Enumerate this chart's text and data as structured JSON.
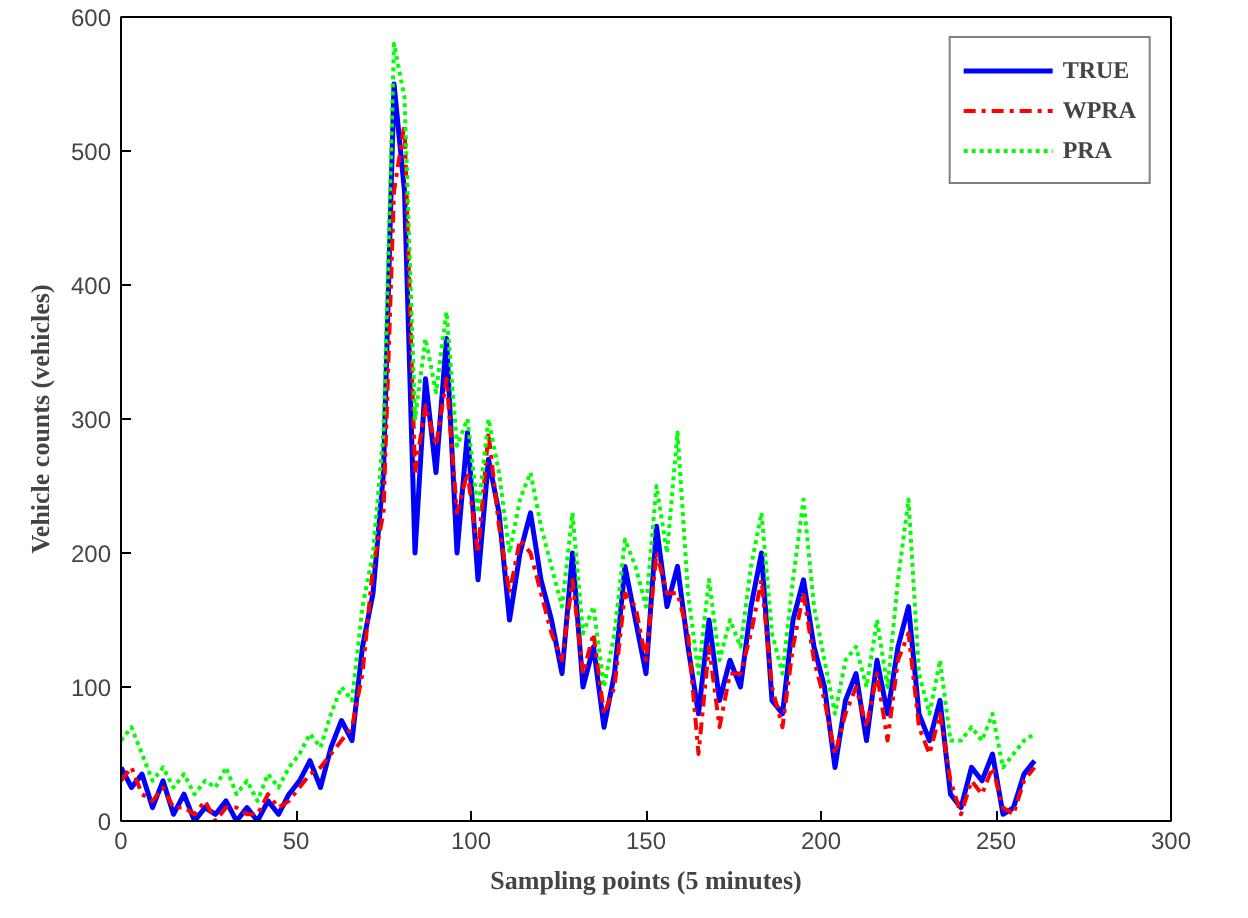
{
  "chart_data": {
    "type": "line",
    "xlabel": "Sampling points (5 minutes)",
    "ylabel": "Vehicle counts (vehicles)",
    "x": [
      0,
      3,
      6,
      9,
      12,
      15,
      18,
      21,
      24,
      27,
      30,
      33,
      36,
      39,
      42,
      45,
      48,
      51,
      54,
      57,
      60,
      63,
      66,
      69,
      72,
      75,
      78,
      81,
      84,
      87,
      90,
      93,
      96,
      99,
      102,
      105,
      108,
      111,
      114,
      117,
      120,
      123,
      126,
      129,
      132,
      135,
      138,
      141,
      144,
      147,
      150,
      153,
      156,
      159,
      162,
      165,
      168,
      171,
      174,
      177,
      180,
      183,
      186,
      189,
      192,
      195,
      198,
      201,
      204,
      207,
      210,
      213,
      216,
      219,
      222,
      225,
      228,
      231,
      234,
      237,
      240,
      243,
      246,
      249,
      252,
      255,
      258,
      261
    ],
    "series": [
      {
        "name": "TRUE",
        "color": "#0000ff",
        "line_style": "solid",
        "values": [
          40,
          25,
          35,
          10,
          30,
          5,
          20,
          0,
          10,
          5,
          15,
          0,
          10,
          0,
          15,
          5,
          20,
          30,
          45,
          25,
          55,
          75,
          60,
          130,
          170,
          260,
          550,
          470,
          200,
          330,
          260,
          360,
          200,
          290,
          180,
          270,
          230,
          150,
          200,
          230,
          180,
          150,
          110,
          200,
          100,
          130,
          70,
          110,
          190,
          150,
          110,
          220,
          160,
          190,
          130,
          80,
          150,
          90,
          120,
          100,
          160,
          200,
          90,
          80,
          150,
          180,
          130,
          100,
          40,
          90,
          110,
          60,
          120,
          80,
          130,
          160,
          80,
          60,
          90,
          20,
          10,
          40,
          30,
          50,
          5,
          10,
          35,
          45
        ]
      },
      {
        "name": "WPRA",
        "color": "#ff0000",
        "line_style": "dashed",
        "values": [
          30,
          40,
          20,
          15,
          25,
          10,
          10,
          5,
          15,
          0,
          10,
          10,
          5,
          5,
          20,
          10,
          15,
          25,
          35,
          40,
          50,
          60,
          70,
          110,
          190,
          230,
          470,
          520,
          260,
          310,
          280,
          330,
          230,
          260,
          200,
          290,
          220,
          170,
          210,
          200,
          170,
          140,
          120,
          180,
          110,
          140,
          80,
          100,
          170,
          160,
          120,
          200,
          170,
          170,
          140,
          50,
          130,
          70,
          110,
          110,
          140,
          180,
          100,
          70,
          130,
          170,
          120,
          90,
          50,
          80,
          100,
          70,
          110,
          60,
          120,
          140,
          70,
          50,
          80,
          30,
          5,
          30,
          20,
          40,
          10,
          5,
          30,
          40
        ]
      },
      {
        "name": "PRA",
        "color": "#00ff00",
        "line_style": "dotted",
        "values": [
          60,
          70,
          50,
          30,
          40,
          25,
          35,
          20,
          30,
          25,
          40,
          20,
          30,
          15,
          35,
          25,
          40,
          50,
          65,
          55,
          80,
          100,
          90,
          160,
          200,
          290,
          580,
          540,
          300,
          360,
          320,
          380,
          280,
          300,
          230,
          300,
          260,
          200,
          240,
          260,
          220,
          190,
          160,
          230,
          140,
          160,
          100,
          140,
          210,
          190,
          160,
          250,
          200,
          290,
          170,
          110,
          180,
          120,
          150,
          130,
          190,
          230,
          140,
          110,
          180,
          240,
          160,
          120,
          80,
          120,
          130,
          100,
          150,
          100,
          180,
          240,
          110,
          80,
          120,
          60,
          60,
          70,
          60,
          80,
          40,
          50,
          60,
          65
        ]
      }
    ],
    "xlim": [
      0,
      300
    ],
    "xticks": [
      0,
      50,
      100,
      150,
      200,
      250,
      300
    ],
    "ylim": [
      0,
      600
    ],
    "yticks": [
      0,
      100,
      200,
      300,
      400,
      500,
      600
    ],
    "grid": false,
    "legend": "top right",
    "marker": "none"
  }
}
